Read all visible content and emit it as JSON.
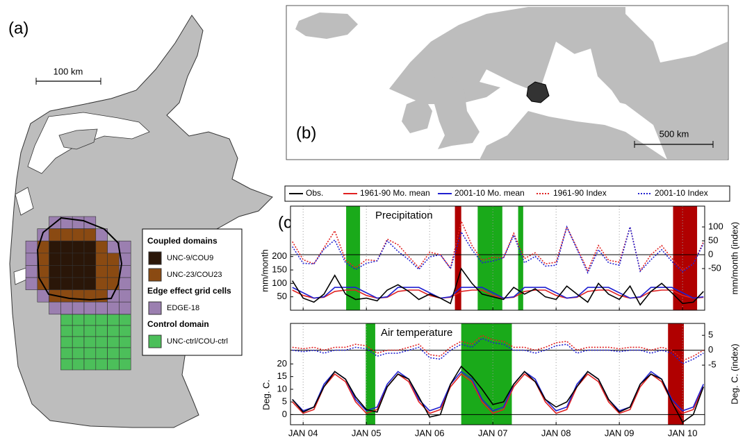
{
  "panel_a": {
    "label": "(a)",
    "scale_label": "100 km",
    "legend": {
      "groups": [
        {
          "title": "Coupled domains",
          "items": [
            "UNC-9/COU9",
            "UNC-23/COU23"
          ]
        },
        {
          "title": "Edge effect grid cells",
          "items": [
            "EDGE-18"
          ]
        },
        {
          "title": "Control domain",
          "items": [
            "UNC-ctrl/COU-ctrl"
          ]
        }
      ]
    }
  },
  "panel_b": {
    "label": "(b)",
    "scale_label": "500 km"
  },
  "panel_c_label": "(c)",
  "chart_data": [
    {
      "type": "line",
      "title": "Precipitation",
      "ylabel": "mm/month",
      "y2label": "mm/month (index)",
      "x": [
        2003.83,
        2004,
        2004.17,
        2004.33,
        2004.5,
        2004.67,
        2004.83,
        2005,
        2005.17,
        2005.33,
        2005.5,
        2005.67,
        2005.83,
        2006,
        2006.17,
        2006.33,
        2006.5,
        2006.67,
        2006.83,
        2007,
        2007.17,
        2007.33,
        2007.5,
        2007.67,
        2007.83,
        2008,
        2008.17,
        2008.33,
        2008.5,
        2008.67,
        2008.83,
        2009,
        2009.17,
        2009.33,
        2009.5,
        2009.67,
        2009.83,
        2010,
        2010.17,
        2010.33
      ],
      "xlim": [
        2003.8,
        2010.35
      ],
      "xticks": [
        2004,
        2005,
        2006,
        2007,
        2008,
        2009,
        2010
      ],
      "ylim": [
        0,
        388
      ],
      "yticks": [
        50,
        100,
        150,
        200
      ],
      "y2lim": [
        -200,
        175
      ],
      "y2ticks": [
        -50,
        0,
        50,
        100
      ],
      "shaded_periods": [
        {
          "start": 2004.68,
          "end": 2004.9,
          "color": "#1aaa1a"
        },
        {
          "start": 2006.4,
          "end": 2006.5,
          "color": "#b00000"
        },
        {
          "start": 2006.76,
          "end": 2007.15,
          "color": "#1aaa1a"
        },
        {
          "start": 2007.4,
          "end": 2007.48,
          "color": "#1aaa1a"
        },
        {
          "start": 2009.85,
          "end": 2010.23,
          "color": "#b00000"
        }
      ],
      "series": [
        {
          "name": "Obs.",
          "color": "#000000",
          "style": "solid",
          "axis": "y",
          "values": [
            110,
            45,
            30,
            60,
            130,
            60,
            40,
            45,
            35,
            75,
            95,
            70,
            40,
            60,
            45,
            25,
            155,
            100,
            60,
            50,
            40,
            85,
            60,
            80,
            50,
            40,
            90,
            60,
            30,
            100,
            60,
            40,
            90,
            20,
            70,
            100,
            65,
            25,
            30,
            70
          ]
        },
        {
          "name": "1961-90 Mo. mean",
          "color": "#e02020",
          "style": "solid",
          "axis": "y",
          "values": [
            75,
            55,
            45,
            48,
            70,
            75,
            75,
            55,
            45,
            48,
            70,
            75,
            75,
            55,
            45,
            48,
            70,
            75,
            75,
            55,
            45,
            48,
            70,
            75,
            75,
            55,
            45,
            48,
            70,
            75,
            75,
            55,
            45,
            48,
            70,
            75,
            75,
            55,
            45,
            48
          ]
        },
        {
          "name": "2001-10 Mo. mean",
          "color": "#2020d0",
          "style": "solid",
          "axis": "y",
          "values": [
            85,
            65,
            45,
            50,
            85,
            85,
            85,
            65,
            45,
            50,
            85,
            85,
            85,
            65,
            45,
            50,
            85,
            85,
            85,
            65,
            45,
            50,
            85,
            85,
            85,
            65,
            45,
            50,
            85,
            85,
            85,
            65,
            45,
            50,
            85,
            85,
            85,
            65,
            45,
            50
          ]
        },
        {
          "name": "1961-90 Index",
          "color": "#e02020",
          "style": "dotted",
          "axis": "y2",
          "values": [
            47,
            -18,
            -33,
            25,
            86,
            -20,
            -47,
            -18,
            -22,
            56,
            36,
            -7,
            -47,
            9,
            0,
            -48,
            121,
            33,
            -20,
            -9,
            -11,
            77,
            -14,
            7,
            -33,
            -27,
            100,
            25,
            -57,
            33,
            -20,
            -27,
            100,
            -58,
            0,
            33,
            -13,
            -55,
            -33,
            46
          ]
        },
        {
          "name": "2001-10 Index",
          "color": "#2020d0",
          "style": "dotted",
          "axis": "y2",
          "values": [
            29,
            -31,
            -33,
            20,
            53,
            -29,
            -53,
            -31,
            -22,
            50,
            12,
            -18,
            -53,
            -8,
            0,
            -50,
            82,
            18,
            -29,
            -23,
            -11,
            70,
            -29,
            -6,
            -41,
            -38,
            100,
            20,
            -65,
            18,
            -29,
            -38,
            100,
            -60,
            -18,
            18,
            -24,
            -62,
            -33,
            40
          ]
        }
      ]
    },
    {
      "type": "line",
      "title": "Air temperature",
      "ylabel": "Deg. C.",
      "y2label": "Deg. C. (index)",
      "x": [
        2003.83,
        2004,
        2004.17,
        2004.33,
        2004.5,
        2004.67,
        2004.83,
        2005,
        2005.17,
        2005.33,
        2005.5,
        2005.67,
        2005.83,
        2006,
        2006.17,
        2006.33,
        2006.5,
        2006.67,
        2006.83,
        2007,
        2007.17,
        2007.33,
        2007.5,
        2007.67,
        2007.83,
        2008,
        2008.17,
        2008.33,
        2008.5,
        2008.67,
        2008.83,
        2009,
        2009.17,
        2009.33,
        2009.5,
        2009.67,
        2009.83,
        2010,
        2010.17,
        2010.33
      ],
      "xlim": [
        2003.8,
        2010.35
      ],
      "xticks": [
        {
          "value": 2004,
          "label": "JAN 04"
        },
        {
          "value": 2005,
          "label": "JAN 05"
        },
        {
          "value": 2006,
          "label": "JAN 06"
        },
        {
          "value": 2007,
          "label": "JAN 07"
        },
        {
          "value": 2008,
          "label": "JAN 08"
        },
        {
          "value": 2009,
          "label": "JAN 09"
        },
        {
          "value": 2010,
          "label": "JAN 10"
        }
      ],
      "ylim": [
        -4,
        36
      ],
      "yticks": [
        0,
        5,
        10,
        15,
        20
      ],
      "y2lim": [
        -25,
        9
      ],
      "y2ticks": [
        -5,
        0,
        5
      ],
      "shaded_periods": [
        {
          "start": 2004.99,
          "end": 2005.14,
          "color": "#1aaa1a"
        },
        {
          "start": 2006.5,
          "end": 2007.3,
          "color": "#1aaa1a"
        },
        {
          "start": 2009.77,
          "end": 2010.02,
          "color": "#b00000"
        }
      ],
      "series": [
        {
          "color": "#000000",
          "style": "solid",
          "axis": "y",
          "values": [
            6,
            1,
            3,
            11,
            17,
            14,
            7,
            2,
            1,
            11,
            16,
            14,
            7,
            -1,
            0,
            12,
            19,
            15,
            10,
            4,
            5,
            12,
            17,
            13,
            6,
            3,
            5,
            11,
            17,
            14,
            6,
            1,
            3,
            12,
            16,
            14,
            5,
            -3,
            0,
            11
          ]
        },
        {
          "color": "#e02020",
          "style": "solid",
          "axis": "y",
          "values": [
            5,
            0.5,
            2,
            11,
            16,
            13,
            5,
            0.5,
            2,
            11,
            16,
            13,
            5,
            0.5,
            2,
            11,
            16,
            13,
            5,
            0.5,
            2,
            11,
            16,
            13,
            5,
            0.5,
            2,
            11,
            16,
            13,
            5,
            0.5,
            2,
            11,
            16,
            13,
            5,
            0.5,
            2,
            11
          ]
        },
        {
          "color": "#2020d0",
          "style": "solid",
          "axis": "y",
          "values": [
            6,
            1.5,
            3,
            12,
            17,
            14,
            6,
            1.5,
            3,
            12,
            17,
            14,
            6,
            1.5,
            3,
            12,
            17,
            14,
            6,
            1.5,
            3,
            12,
            17,
            14,
            6,
            1.5,
            3,
            12,
            17,
            14,
            6,
            1.5,
            3,
            12,
            17,
            14,
            6,
            1.5,
            3,
            12
          ]
        },
        {
          "color": "#e02020",
          "style": "dotted",
          "axis": "y2",
          "values": [
            1,
            0.5,
            1,
            0,
            1,
            1,
            2,
            1.5,
            -1,
            0,
            0,
            1,
            2,
            -1.5,
            -2,
            1,
            3,
            2,
            5,
            3.5,
            3,
            1,
            1,
            0,
            1,
            2.5,
            3,
            0,
            1,
            1,
            1,
            0.5,
            1,
            1,
            0,
            1,
            0,
            -3.5,
            -2,
            0
          ]
        },
        {
          "color": "#2020d0",
          "style": "dotted",
          "axis": "y2",
          "values": [
            0,
            -0.5,
            0,
            -1,
            0,
            0,
            1,
            0.5,
            -2,
            -1,
            -1,
            0,
            1,
            -2.5,
            -3,
            0,
            2,
            1,
            4,
            2.5,
            2,
            0,
            0,
            -1,
            0,
            1.5,
            2,
            -1,
            0,
            0,
            0,
            -0.5,
            0,
            0,
            -1,
            0,
            -1,
            -4.5,
            -3,
            -1
          ]
        }
      ]
    }
  ]
}
